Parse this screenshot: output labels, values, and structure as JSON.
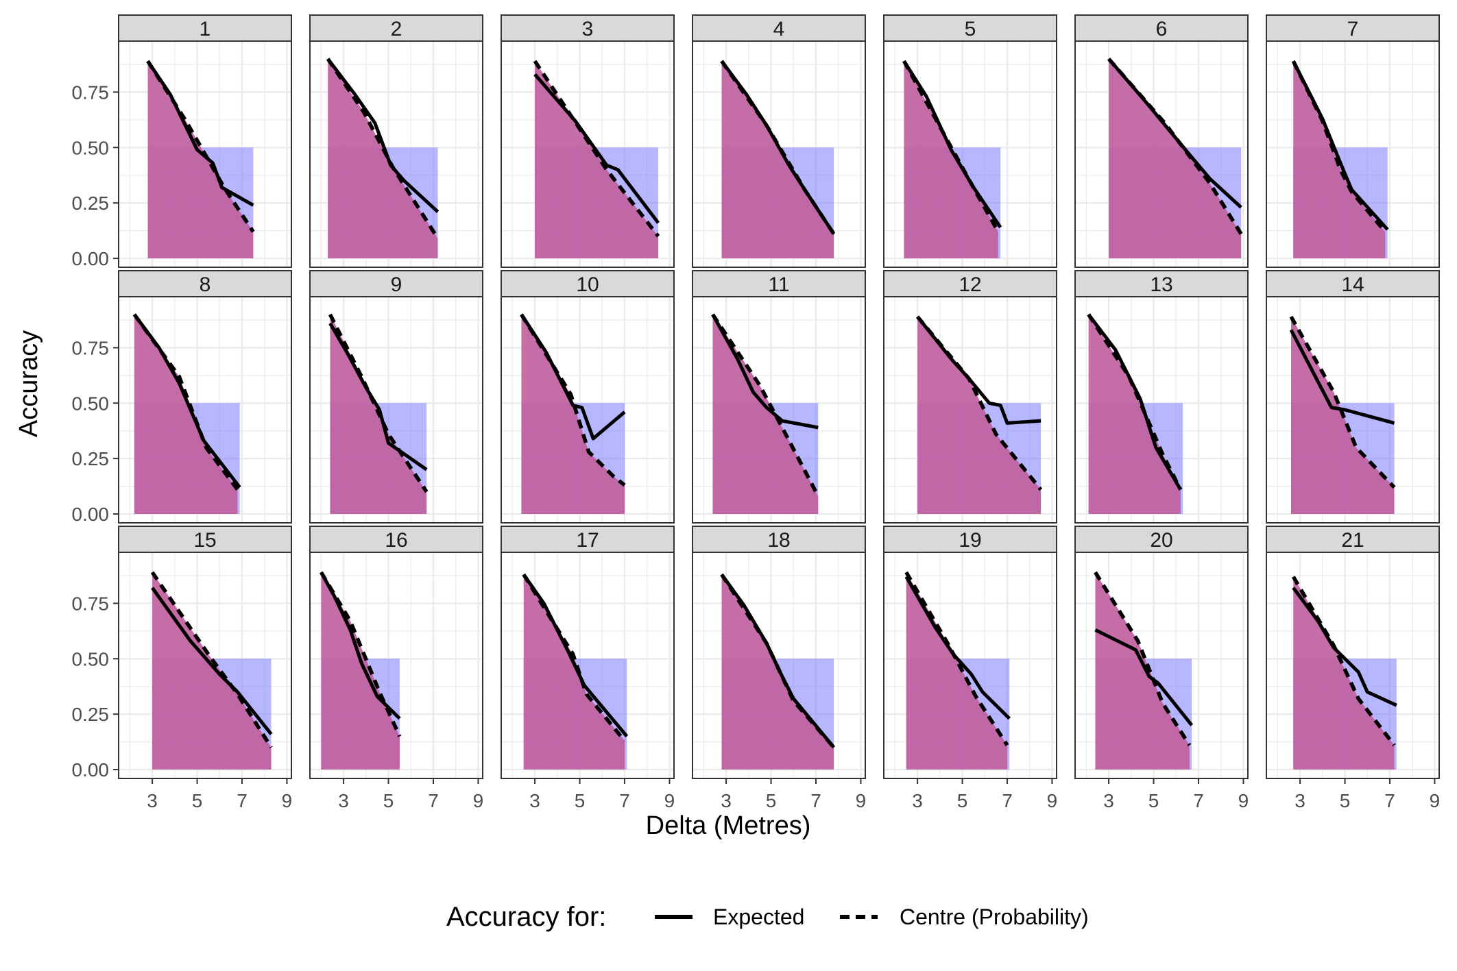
{
  "chart_data": {
    "type": "line",
    "layout": "facet-grid",
    "xlabel": "Delta (Metres)",
    "ylabel": "Accuracy",
    "xlim": [
      1.5,
      9.2
    ],
    "ylim": [
      -0.04,
      0.98
    ],
    "x_ticks": [
      3,
      5,
      7,
      9
    ],
    "y_ticks": [
      0.0,
      0.25,
      0.5,
      0.75
    ],
    "y_tick_labels": [
      "0.00",
      "0.25",
      "0.50",
      "0.75"
    ],
    "grid": true,
    "legend": {
      "position": "bottom",
      "title": "Accuracy for:",
      "items": [
        {
          "label": "Expected",
          "linetype": "solid"
        },
        {
          "label": "Centre (Probability)",
          "linetype": "dashed"
        }
      ]
    },
    "colors": {
      "blue_area": "#7b7bff",
      "pink_area": "#c0619e",
      "line": "#000000",
      "strip": "#d9d9d9",
      "grid": "#ebebeb"
    },
    "panels": [
      {
        "label": "1",
        "xmin": 2.8,
        "xmax": 7.5,
        "expected": [
          [
            2.8,
            0.89
          ],
          [
            3.8,
            0.74
          ],
          [
            5.0,
            0.49
          ],
          [
            5.7,
            0.43
          ],
          [
            6.1,
            0.32
          ],
          [
            7.5,
            0.24
          ]
        ],
        "centre": [
          [
            2.8,
            0.89
          ],
          [
            4.5,
            0.62
          ],
          [
            6.2,
            0.32
          ],
          [
            7.5,
            0.12
          ]
        ]
      },
      {
        "label": "2",
        "xmin": 2.3,
        "xmax": 7.2,
        "expected": [
          [
            2.3,
            0.9
          ],
          [
            3.5,
            0.74
          ],
          [
            4.4,
            0.61
          ],
          [
            5.1,
            0.42
          ],
          [
            5.7,
            0.35
          ],
          [
            7.2,
            0.21
          ]
        ],
        "centre": [
          [
            2.3,
            0.9
          ],
          [
            3.9,
            0.66
          ],
          [
            5.2,
            0.41
          ],
          [
            7.2,
            0.09
          ]
        ]
      },
      {
        "label": "3",
        "xmin": 3.0,
        "xmax": 8.5,
        "expected": [
          [
            3.0,
            0.83
          ],
          [
            4.8,
            0.62
          ],
          [
            6.2,
            0.42
          ],
          [
            6.7,
            0.4
          ],
          [
            8.5,
            0.16
          ]
        ],
        "centre": [
          [
            3.0,
            0.89
          ],
          [
            6.2,
            0.4
          ],
          [
            8.5,
            0.1
          ]
        ]
      },
      {
        "label": "4",
        "xmin": 2.8,
        "xmax": 7.8,
        "expected": [
          [
            2.8,
            0.89
          ],
          [
            3.9,
            0.74
          ],
          [
            4.8,
            0.6
          ],
          [
            5.8,
            0.42
          ],
          [
            6.5,
            0.31
          ],
          [
            7.8,
            0.11
          ]
        ],
        "centre": [
          [
            2.8,
            0.89
          ],
          [
            4.8,
            0.6
          ],
          [
            6.5,
            0.31
          ],
          [
            7.8,
            0.11
          ]
        ]
      },
      {
        "label": "5",
        "xmin": 2.4,
        "xmax": 6.7,
        "expected": [
          [
            2.4,
            0.89
          ],
          [
            3.4,
            0.73
          ],
          [
            4.5,
            0.49
          ],
          [
            5.5,
            0.32
          ],
          [
            6.7,
            0.14
          ]
        ],
        "centre": [
          [
            2.4,
            0.89
          ],
          [
            4.4,
            0.52
          ],
          [
            5.6,
            0.3
          ],
          [
            6.6,
            0.12
          ]
        ]
      },
      {
        "label": "6",
        "xmin": 3.0,
        "xmax": 8.9,
        "expected": [
          [
            3.0,
            0.9
          ],
          [
            4.7,
            0.7
          ],
          [
            6.5,
            0.48
          ],
          [
            7.5,
            0.36
          ],
          [
            8.9,
            0.23
          ]
        ],
        "centre": [
          [
            3.0,
            0.9
          ],
          [
            5.5,
            0.61
          ],
          [
            7.5,
            0.34
          ],
          [
            8.9,
            0.11
          ]
        ]
      },
      {
        "label": "7",
        "xmin": 2.7,
        "xmax": 6.9,
        "expected": [
          [
            2.7,
            0.89
          ],
          [
            4.0,
            0.63
          ],
          [
            4.8,
            0.43
          ],
          [
            5.3,
            0.31
          ],
          [
            6.9,
            0.13
          ]
        ],
        "centre": [
          [
            2.7,
            0.89
          ],
          [
            4.0,
            0.62
          ],
          [
            4.8,
            0.4
          ],
          [
            5.3,
            0.3
          ],
          [
            6.8,
            0.12
          ]
        ]
      },
      {
        "label": "8",
        "xmin": 2.2,
        "xmax": 6.9,
        "expected": [
          [
            2.2,
            0.9
          ],
          [
            3.3,
            0.75
          ],
          [
            4.2,
            0.59
          ],
          [
            5.3,
            0.33
          ],
          [
            6.9,
            0.12
          ]
        ],
        "centre": [
          [
            2.2,
            0.9
          ],
          [
            4.2,
            0.62
          ],
          [
            5.4,
            0.3
          ],
          [
            6.8,
            0.11
          ]
        ]
      },
      {
        "label": "9",
        "xmin": 2.4,
        "xmax": 6.7,
        "expected": [
          [
            2.4,
            0.86
          ],
          [
            3.2,
            0.72
          ],
          [
            4.0,
            0.57
          ],
          [
            4.6,
            0.47
          ],
          [
            5.0,
            0.32
          ],
          [
            6.7,
            0.2
          ]
        ],
        "centre": [
          [
            2.4,
            0.9
          ],
          [
            3.8,
            0.62
          ],
          [
            5.0,
            0.36
          ],
          [
            6.7,
            0.1
          ]
        ]
      },
      {
        "label": "10",
        "xmin": 2.4,
        "xmax": 7.0,
        "expected": [
          [
            2.4,
            0.9
          ],
          [
            3.5,
            0.73
          ],
          [
            4.7,
            0.49
          ],
          [
            5.1,
            0.48
          ],
          [
            5.6,
            0.34
          ],
          [
            6.3,
            0.4
          ],
          [
            7.0,
            0.46
          ]
        ],
        "centre": [
          [
            2.4,
            0.9
          ],
          [
            4.6,
            0.54
          ],
          [
            5.4,
            0.28
          ],
          [
            6.5,
            0.17
          ],
          [
            7.0,
            0.13
          ]
        ]
      },
      {
        "label": "11",
        "xmin": 2.4,
        "xmax": 7.1,
        "expected": [
          [
            2.4,
            0.9
          ],
          [
            3.5,
            0.7
          ],
          [
            4.2,
            0.55
          ],
          [
            4.8,
            0.48
          ],
          [
            5.5,
            0.42
          ],
          [
            7.1,
            0.39
          ]
        ],
        "centre": [
          [
            2.4,
            0.9
          ],
          [
            4.5,
            0.58
          ],
          [
            5.6,
            0.37
          ],
          [
            7.1,
            0.08
          ]
        ]
      },
      {
        "label": "12",
        "xmin": 3.0,
        "xmax": 8.5,
        "expected": [
          [
            3.0,
            0.89
          ],
          [
            4.5,
            0.7
          ],
          [
            5.3,
            0.61
          ],
          [
            6.2,
            0.5
          ],
          [
            6.7,
            0.49
          ],
          [
            7.0,
            0.41
          ],
          [
            8.5,
            0.42
          ]
        ],
        "centre": [
          [
            3.0,
            0.89
          ],
          [
            5.3,
            0.61
          ],
          [
            6.5,
            0.36
          ],
          [
            8.5,
            0.11
          ]
        ]
      },
      {
        "label": "13",
        "xmin": 2.1,
        "xmax": 6.3,
        "expected": [
          [
            2.1,
            0.9
          ],
          [
            3.3,
            0.74
          ],
          [
            4.4,
            0.52
          ],
          [
            5.1,
            0.3
          ],
          [
            6.2,
            0.11
          ]
        ],
        "centre": [
          [
            2.1,
            0.9
          ],
          [
            3.9,
            0.62
          ],
          [
            5.4,
            0.27
          ],
          [
            6.2,
            0.11
          ]
        ]
      },
      {
        "label": "14",
        "xmin": 2.6,
        "xmax": 7.2,
        "expected": [
          [
            2.6,
            0.83
          ],
          [
            4.4,
            0.48
          ],
          [
            5.0,
            0.47
          ],
          [
            7.2,
            0.41
          ]
        ],
        "centre": [
          [
            2.6,
            0.89
          ],
          [
            4.5,
            0.55
          ],
          [
            5.5,
            0.3
          ],
          [
            7.2,
            0.12
          ]
        ]
      },
      {
        "label": "15",
        "xmin": 3.0,
        "xmax": 8.3,
        "expected": [
          [
            3.0,
            0.82
          ],
          [
            4.7,
            0.58
          ],
          [
            6.0,
            0.43
          ],
          [
            6.8,
            0.35
          ],
          [
            8.3,
            0.16
          ]
        ],
        "centre": [
          [
            3.0,
            0.89
          ],
          [
            5.5,
            0.52
          ],
          [
            6.8,
            0.34
          ],
          [
            8.3,
            0.1
          ]
        ]
      },
      {
        "label": "16",
        "xmin": 2.0,
        "xmax": 5.5,
        "expected": [
          [
            2.0,
            0.89
          ],
          [
            2.6,
            0.78
          ],
          [
            3.3,
            0.63
          ],
          [
            3.8,
            0.48
          ],
          [
            4.5,
            0.33
          ],
          [
            5.5,
            0.23
          ]
        ],
        "centre": [
          [
            2.0,
            0.89
          ],
          [
            3.3,
            0.67
          ],
          [
            4.6,
            0.35
          ],
          [
            5.5,
            0.15
          ]
        ]
      },
      {
        "label": "17",
        "xmin": 2.5,
        "xmax": 7.1,
        "expected": [
          [
            2.5,
            0.88
          ],
          [
            3.4,
            0.75
          ],
          [
            4.5,
            0.53
          ],
          [
            5.2,
            0.38
          ],
          [
            7.1,
            0.15
          ]
        ],
        "centre": [
          [
            2.5,
            0.88
          ],
          [
            4.7,
            0.52
          ],
          [
            5.3,
            0.34
          ],
          [
            7.0,
            0.13
          ]
        ]
      },
      {
        "label": "18",
        "xmin": 2.8,
        "xmax": 7.8,
        "expected": [
          [
            2.8,
            0.88
          ],
          [
            3.8,
            0.74
          ],
          [
            4.8,
            0.57
          ],
          [
            5.4,
            0.44
          ],
          [
            6.0,
            0.32
          ],
          [
            7.8,
            0.1
          ]
        ],
        "centre": [
          [
            2.8,
            0.88
          ],
          [
            4.8,
            0.57
          ],
          [
            6.0,
            0.31
          ],
          [
            7.8,
            0.1
          ]
        ]
      },
      {
        "label": "19",
        "xmin": 2.5,
        "xmax": 7.1,
        "expected": [
          [
            2.5,
            0.87
          ],
          [
            3.8,
            0.64
          ],
          [
            4.6,
            0.52
          ],
          [
            5.4,
            0.43
          ],
          [
            5.9,
            0.35
          ],
          [
            7.1,
            0.23
          ]
        ],
        "centre": [
          [
            2.5,
            0.89
          ],
          [
            4.4,
            0.56
          ],
          [
            5.6,
            0.33
          ],
          [
            7.0,
            0.11
          ]
        ]
      },
      {
        "label": "20",
        "xmin": 2.4,
        "xmax": 6.7,
        "expected": [
          [
            2.4,
            0.63
          ],
          [
            3.0,
            0.6
          ],
          [
            4.2,
            0.54
          ],
          [
            4.8,
            0.42
          ],
          [
            5.2,
            0.39
          ],
          [
            6.7,
            0.2
          ]
        ],
        "centre": [
          [
            2.4,
            0.89
          ],
          [
            4.3,
            0.58
          ],
          [
            5.4,
            0.3
          ],
          [
            6.6,
            0.11
          ]
        ]
      },
      {
        "label": "21",
        "xmin": 2.7,
        "xmax": 7.3,
        "expected": [
          [
            2.7,
            0.82
          ],
          [
            3.8,
            0.67
          ],
          [
            4.5,
            0.55
          ],
          [
            5.2,
            0.48
          ],
          [
            5.6,
            0.44
          ],
          [
            6.0,
            0.35
          ],
          [
            7.3,
            0.29
          ]
        ],
        "centre": [
          [
            2.7,
            0.87
          ],
          [
            4.5,
            0.56
          ],
          [
            5.6,
            0.32
          ],
          [
            7.2,
            0.11
          ]
        ]
      }
    ]
  }
}
